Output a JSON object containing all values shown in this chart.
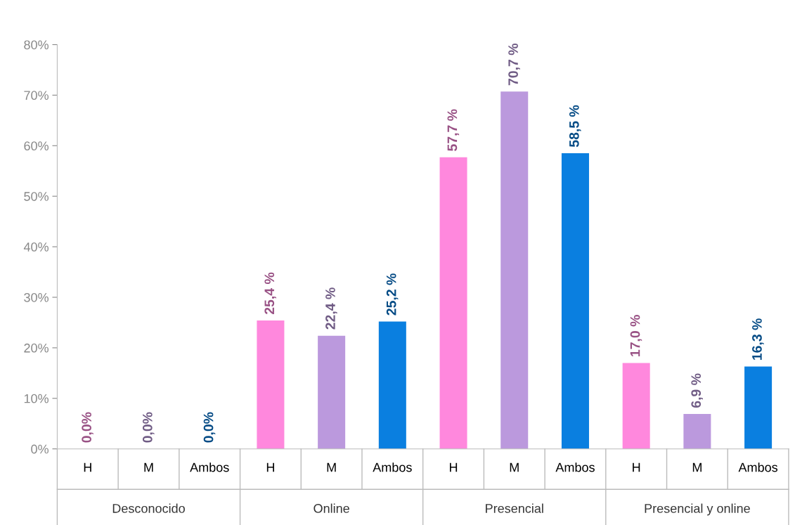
{
  "chart_data": {
    "type": "bar",
    "categories": [
      "H",
      "M",
      "Ambos",
      "H",
      "M",
      "Ambos",
      "H",
      "M",
      "Ambos",
      "H",
      "M",
      "Ambos"
    ],
    "values": [
      0.0,
      0.0,
      0.0,
      25.4,
      22.4,
      25.2,
      57.7,
      70.7,
      58.5,
      17.0,
      6.9,
      16.3
    ],
    "colors": [
      "#ff88dd",
      "#bb99dd",
      "#0a7fe0",
      "#ff88dd",
      "#bb99dd",
      "#0a7fe0",
      "#ff88dd",
      "#bb99dd",
      "#0a7fe0",
      "#ff88dd",
      "#bb99dd",
      "#0a7fe0"
    ],
    "value_labels": [
      "0,0%",
      "0,0%",
      "0,0%",
      "25,4 %",
      "22,4 %",
      "25,2 %",
      "57,7 %",
      "70,7 %",
      "58,5 %",
      "17,0 %",
      "6,9 %",
      "16,3 %"
    ],
    "annotations": [
      "Desconocido",
      "Online",
      "Presencial",
      "Presencial y online"
    ],
    "ylim": [
      0,
      80
    ],
    "yticks": [
      {
        "value": 0,
        "label": "0%"
      },
      {
        "value": 10,
        "label": "10%"
      },
      {
        "value": 20,
        "label": "20%"
      },
      {
        "value": 30,
        "label": "30%"
      },
      {
        "value": 40,
        "label": "40%"
      },
      {
        "value": 50,
        "label": "50%"
      },
      {
        "value": 60,
        "label": "60%"
      },
      {
        "value": 70,
        "label": "70%"
      },
      {
        "value": 80,
        "label": "80%"
      }
    ],
    "grid": false
  }
}
